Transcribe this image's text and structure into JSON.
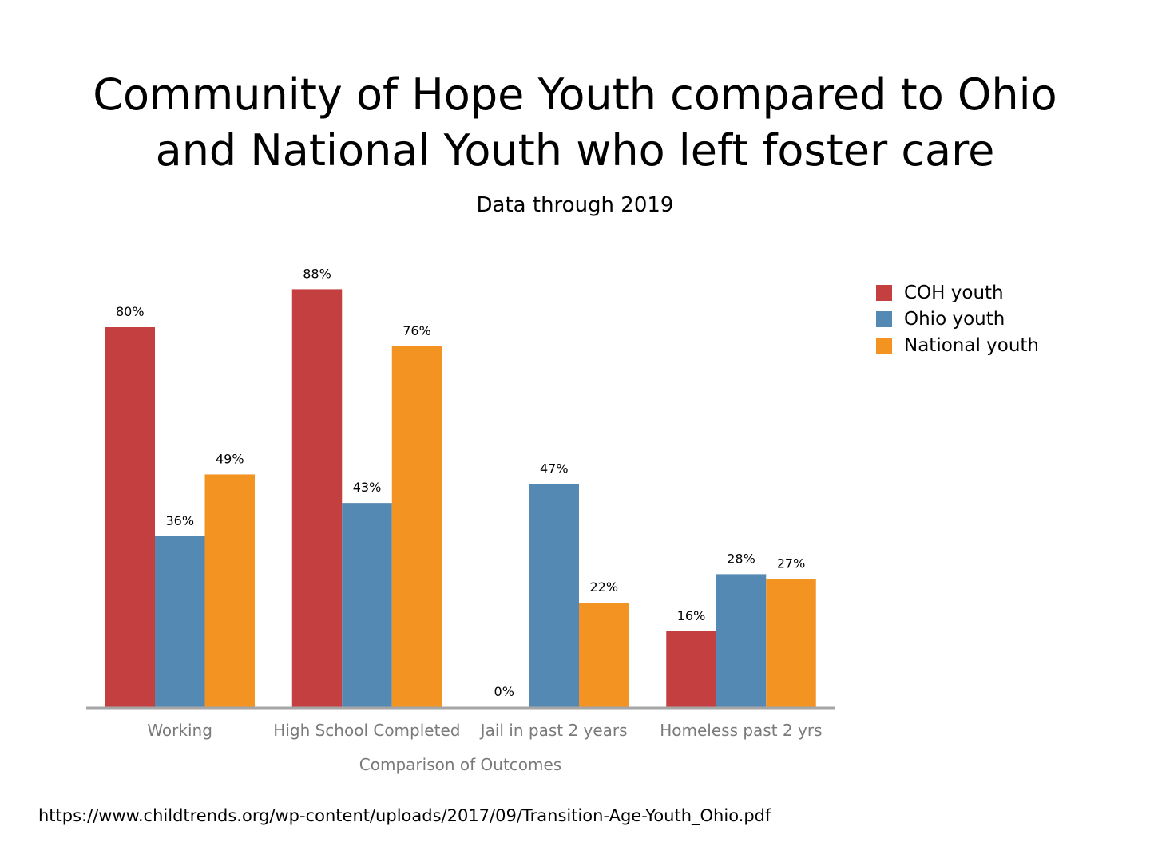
{
  "title_line1": "Community of Hope Youth compared to Ohio",
  "title_line2": "and National Youth who left foster care",
  "subtitle": "Data through 2019",
  "source": "https://www.childtrends.org/wp-content/uploads/2017/09/Transition-Age-Youth_Ohio.pdf",
  "chart_data": {
    "type": "bar",
    "title": "Community of Hope Youth compared to Ohio and National Youth who left foster care",
    "subtitle": "Data through 2019",
    "xlabel": "Comparison of Outcomes",
    "ylabel": "",
    "ylim": [
      0,
      100
    ],
    "grid": false,
    "legend_position": "right",
    "categories": [
      "Working",
      "High School Completed",
      "Jail in past 2 years",
      "Homeless past 2 yrs"
    ],
    "series": [
      {
        "name": "COH youth",
        "color": "#c44040",
        "values": [
          80,
          88,
          0,
          16
        ],
        "labels": [
          "80%",
          "88%",
          "0%",
          "16%"
        ]
      },
      {
        "name": "Ohio youth",
        "color": "#5489b4",
        "values": [
          36,
          43,
          47,
          28
        ],
        "labels": [
          "36%",
          "43%",
          "47%",
          "28%"
        ]
      },
      {
        "name": "National youth",
        "color": "#f39322",
        "values": [
          49,
          76,
          22,
          27
        ],
        "labels": [
          "49%",
          "76%",
          "22%",
          "27%"
        ]
      }
    ]
  }
}
